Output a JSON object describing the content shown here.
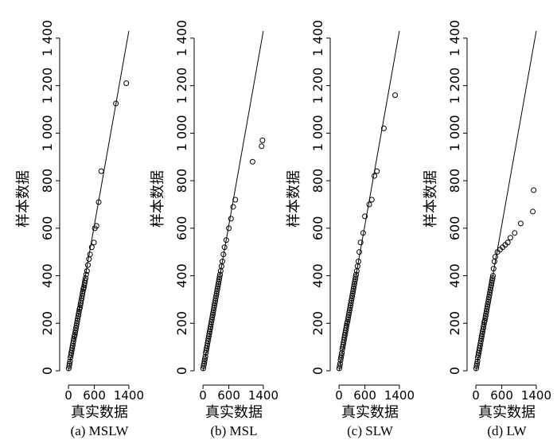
{
  "chart_data": [
    {
      "type": "scatter",
      "caption": "(a) MSLW",
      "xlabel": "真实数据",
      "ylabel": "样本数据",
      "xlim": [
        -20,
        1420
      ],
      "ylim": [
        -20,
        1460
      ],
      "x_ticks": [
        "0",
        "600",
        "1400"
      ],
      "y_ticks": [
        "0",
        "200",
        "400",
        "600",
        "800",
        "1 000",
        "1 200",
        "1 400"
      ],
      "reference_line": [
        [
          0,
          0
        ],
        [
          1400,
          1430
        ]
      ],
      "series": [
        {
          "x": [
            5,
            15,
            25,
            35,
            45,
            55,
            65,
            75,
            85,
            95,
            105,
            115,
            125,
            135,
            145,
            155,
            165,
            175,
            185,
            195,
            205,
            215,
            225,
            235,
            245,
            255,
            265,
            275,
            285,
            295,
            305,
            315,
            325,
            335,
            345,
            355,
            365,
            375,
            385,
            395,
            410,
            430,
            450,
            475,
            500,
            540,
            590,
            610,
            650,
            700,
            760,
            1100,
            1340
          ],
          "y": [
            10,
            20,
            30,
            40,
            55,
            65,
            75,
            85,
            95,
            105,
            115,
            125,
            135,
            145,
            150,
            160,
            170,
            180,
            190,
            200,
            210,
            220,
            230,
            240,
            250,
            260,
            265,
            275,
            285,
            295,
            305,
            315,
            325,
            335,
            345,
            350,
            360,
            370,
            380,
            390,
            405,
            420,
            445,
            470,
            490,
            520,
            540,
            600,
            610,
            710,
            840,
            1125,
            1210
          ]
        }
      ]
    },
    {
      "type": "scatter",
      "caption": "(b) MSL",
      "xlabel": "真实数据",
      "ylabel": "样本数据",
      "xlim": [
        -20,
        1420
      ],
      "ylim": [
        -20,
        1460
      ],
      "x_ticks": [
        "0",
        "600",
        "1400"
      ],
      "y_ticks": [
        "0",
        "200",
        "400",
        "600",
        "800",
        "1 000",
        "1 200",
        "1 400"
      ],
      "reference_line": [
        [
          0,
          0
        ],
        [
          1400,
          1430
        ]
      ],
      "series": [
        {
          "x": [
            5,
            15,
            25,
            35,
            45,
            55,
            65,
            75,
            85,
            95,
            105,
            115,
            125,
            135,
            145,
            155,
            165,
            175,
            185,
            195,
            205,
            215,
            225,
            235,
            245,
            255,
            265,
            275,
            285,
            295,
            305,
            315,
            325,
            335,
            345,
            355,
            365,
            375,
            385,
            395,
            410,
            430,
            450,
            475,
            500,
            540,
            600,
            650,
            700,
            750,
            1150,
            1360,
            1380
          ],
          "y": [
            10,
            20,
            30,
            40,
            50,
            60,
            75,
            85,
            95,
            105,
            115,
            125,
            135,
            145,
            155,
            165,
            175,
            185,
            195,
            205,
            215,
            225,
            235,
            245,
            255,
            265,
            275,
            285,
            295,
            305,
            315,
            325,
            335,
            345,
            355,
            365,
            375,
            385,
            395,
            405,
            420,
            440,
            460,
            490,
            520,
            550,
            600,
            640,
            690,
            720,
            880,
            945,
            970
          ]
        }
      ]
    },
    {
      "type": "scatter",
      "caption": "(c) SLW",
      "xlabel": "真实数据",
      "ylabel": "样本数据",
      "xlim": [
        -20,
        1420
      ],
      "ylim": [
        -20,
        1460
      ],
      "x_ticks": [
        "0",
        "600",
        "1400"
      ],
      "y_ticks": [
        "0",
        "200",
        "400",
        "600",
        "800",
        "1 000",
        "1 200",
        "1 400"
      ],
      "reference_line": [
        [
          0,
          0
        ],
        [
          1400,
          1430
        ]
      ],
      "series": [
        {
          "x": [
            5,
            15,
            25,
            35,
            45,
            55,
            65,
            75,
            85,
            95,
            105,
            115,
            125,
            135,
            145,
            155,
            165,
            175,
            185,
            195,
            205,
            215,
            225,
            235,
            245,
            255,
            265,
            275,
            285,
            295,
            305,
            315,
            325,
            335,
            345,
            355,
            365,
            375,
            385,
            395,
            410,
            430,
            450,
            470,
            500,
            560,
            600,
            700,
            760,
            820,
            880,
            1040,
            1300
          ],
          "y": [
            10,
            20,
            30,
            45,
            55,
            65,
            75,
            90,
            100,
            110,
            120,
            130,
            140,
            150,
            160,
            170,
            180,
            190,
            200,
            205,
            215,
            225,
            235,
            245,
            255,
            265,
            275,
            285,
            295,
            305,
            315,
            325,
            335,
            345,
            355,
            365,
            375,
            385,
            395,
            405,
            420,
            440,
            460,
            500,
            540,
            580,
            650,
            700,
            720,
            820,
            840,
            1020,
            1160
          ]
        }
      ]
    },
    {
      "type": "scatter",
      "caption": "(d) LW",
      "xlabel": "真实数据",
      "ylabel": "样本数据",
      "xlim": [
        -20,
        1420
      ],
      "ylim": [
        -20,
        1460
      ],
      "x_ticks": [
        "0",
        "600",
        "1400"
      ],
      "y_ticks": [
        "0",
        "200",
        "400",
        "600",
        "800",
        "1 000",
        "1 200",
        "1 400"
      ],
      "reference_line": [
        [
          0,
          0
        ],
        [
          1400,
          1430
        ]
      ],
      "series": [
        {
          "x": [
            5,
            15,
            25,
            35,
            45,
            55,
            65,
            75,
            85,
            95,
            105,
            115,
            125,
            135,
            145,
            155,
            165,
            175,
            185,
            195,
            205,
            215,
            225,
            235,
            245,
            255,
            265,
            275,
            285,
            295,
            305,
            315,
            325,
            335,
            345,
            355,
            365,
            375,
            385,
            395,
            410,
            430,
            450,
            500,
            560,
            620,
            680,
            740,
            800,
            900,
            1040,
            1320,
            1340
          ],
          "y": [
            10,
            20,
            30,
            40,
            55,
            65,
            75,
            85,
            95,
            105,
            115,
            125,
            135,
            145,
            155,
            165,
            175,
            185,
            195,
            205,
            210,
            220,
            230,
            240,
            250,
            260,
            270,
            280,
            290,
            300,
            310,
            320,
            330,
            340,
            350,
            360,
            370,
            380,
            390,
            400,
            430,
            460,
            480,
            500,
            510,
            520,
            530,
            540,
            560,
            580,
            620,
            670,
            760
          ]
        }
      ]
    }
  ]
}
